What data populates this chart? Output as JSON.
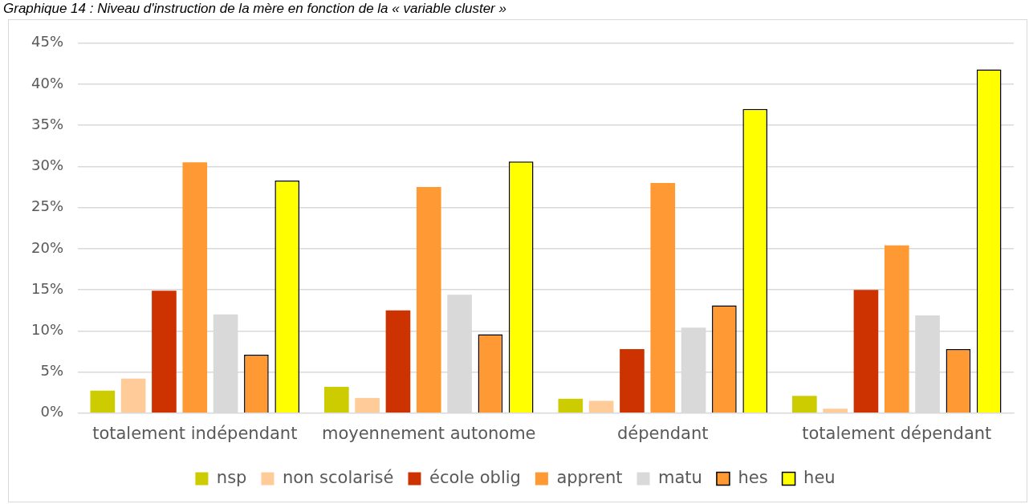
{
  "chart_data": {
    "type": "bar",
    "title": "Graphique 14 : Niveau d'instruction de la mère en fonction de la « variable cluster »",
    "categories": [
      "totalement indépendant",
      "moyennement autonome",
      "dépendant",
      "totalement dépendant"
    ],
    "series": [
      {
        "name": "nsp",
        "color": "#cccc00",
        "values": [
          2.75,
          3.2,
          1.75,
          2.1
        ]
      },
      {
        "name": "non scolarisé",
        "color": "#ffcc99",
        "values": [
          4.2,
          1.85,
          1.5,
          0.55
        ]
      },
      {
        "name": "école oblig",
        "color": "#cc3300",
        "values": [
          14.9,
          12.5,
          7.8,
          15.0
        ]
      },
      {
        "name": "apprent",
        "color": "#ff9933",
        "values": [
          30.5,
          27.5,
          28.0,
          20.4
        ]
      },
      {
        "name": "matu",
        "color": "#d9d9d9",
        "values": [
          12.0,
          14.4,
          10.4,
          11.9
        ]
      },
      {
        "name": "hes",
        "color": "#ff9933",
        "values": [
          7.1,
          9.6,
          13.1,
          7.8
        ]
      },
      {
        "name": "heu",
        "color": "#ffff00",
        "values": [
          28.3,
          30.6,
          37.0,
          41.8
        ]
      }
    ],
    "ylim": [
      0,
      45
    ],
    "yticks": [
      {
        "value": 0,
        "label": "0%"
      },
      {
        "value": 5,
        "label": "5%"
      },
      {
        "value": 10,
        "label": "10%"
      },
      {
        "value": 15,
        "label": "15%"
      },
      {
        "value": 20,
        "label": "20%"
      },
      {
        "value": 25,
        "label": "25%"
      },
      {
        "value": 30,
        "label": "30%"
      },
      {
        "value": 35,
        "label": "35%"
      },
      {
        "value": 40,
        "label": "40%"
      },
      {
        "value": 45,
        "label": "45%"
      }
    ],
    "grid": "y",
    "legend": "bottom"
  }
}
